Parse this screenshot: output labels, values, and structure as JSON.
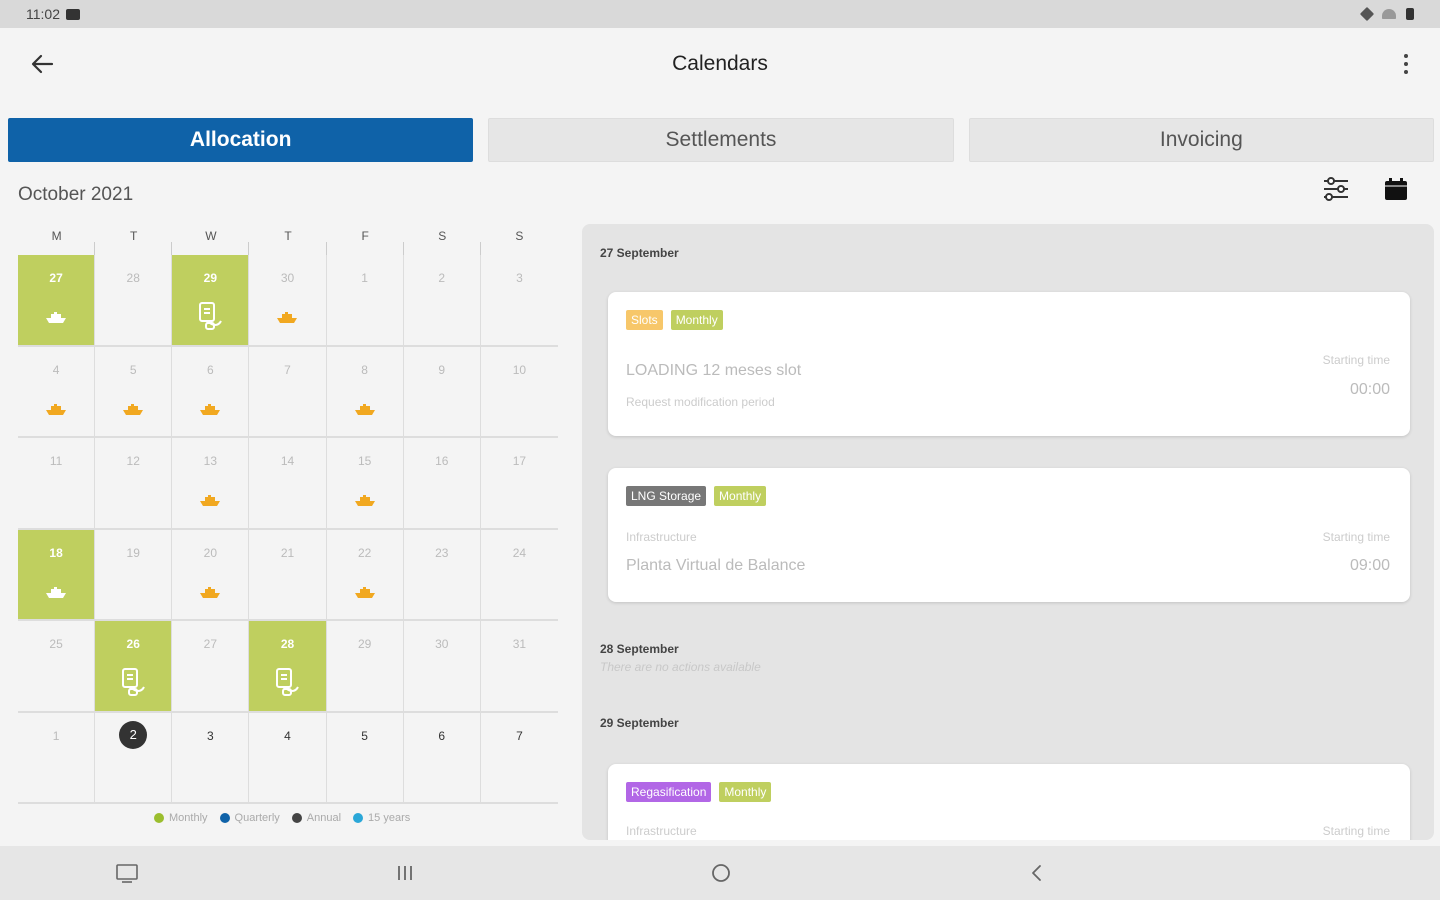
{
  "status_bar": {
    "time": "11:02"
  },
  "app_bar": {
    "title": "Calendars"
  },
  "tabs": [
    {
      "label": "Allocation",
      "active": true
    },
    {
      "label": "Settlements",
      "active": false
    },
    {
      "label": "Invoicing",
      "active": false
    }
  ],
  "month_title": "October 2021",
  "weekdays": [
    "M",
    "T",
    "W",
    "T",
    "F",
    "S",
    "S"
  ],
  "calendar_days": [
    {
      "d": "27",
      "hl": true,
      "ev": "ship"
    },
    {
      "d": "28"
    },
    {
      "d": "29",
      "hl": true,
      "ev": "doc"
    },
    {
      "d": "30",
      "ev": "ship"
    },
    {
      "d": "1"
    },
    {
      "d": "2"
    },
    {
      "d": "3"
    },
    {
      "d": "4",
      "ev": "ship"
    },
    {
      "d": "5",
      "ev": "ship"
    },
    {
      "d": "6",
      "ev": "ship"
    },
    {
      "d": "7"
    },
    {
      "d": "8",
      "ev": "ship"
    },
    {
      "d": "9"
    },
    {
      "d": "10"
    },
    {
      "d": "11"
    },
    {
      "d": "12"
    },
    {
      "d": "13",
      "ev": "ship"
    },
    {
      "d": "14"
    },
    {
      "d": "15",
      "ev": "ship"
    },
    {
      "d": "16"
    },
    {
      "d": "17"
    },
    {
      "d": "18",
      "hl": true,
      "ev": "ship"
    },
    {
      "d": "19"
    },
    {
      "d": "20",
      "ev": "ship"
    },
    {
      "d": "21"
    },
    {
      "d": "22",
      "ev": "ship"
    },
    {
      "d": "23"
    },
    {
      "d": "24"
    },
    {
      "d": "25"
    },
    {
      "d": "26",
      "hl": true,
      "ev": "doc"
    },
    {
      "d": "27"
    },
    {
      "d": "28",
      "hl": true,
      "ev": "doc"
    },
    {
      "d": "29"
    },
    {
      "d": "30"
    },
    {
      "d": "31"
    },
    {
      "d": "1"
    },
    {
      "d": "2",
      "today": true
    },
    {
      "d": "3",
      "current": true
    },
    {
      "d": "4",
      "current": true
    },
    {
      "d": "5",
      "current": true
    },
    {
      "d": "6",
      "current": true
    },
    {
      "d": "7",
      "current": true
    }
  ],
  "legend": [
    {
      "label": "Monthly",
      "color": "#9bbe2e"
    },
    {
      "label": "Quarterly",
      "color": "#0f62a8"
    },
    {
      "label": "Annual",
      "color": "#444444"
    },
    {
      "label": "15 years",
      "color": "#2aa7d8"
    }
  ],
  "panel": {
    "day1": {
      "title": "27 September"
    },
    "card1": {
      "badges": [
        {
          "label": "Slots",
          "color": "#f7c76a"
        },
        {
          "label": "Monthly",
          "color": "#bfcf5f"
        }
      ],
      "name": "LOADING 12 meses slot",
      "sub": "Request modification period",
      "time_label": "Starting time",
      "time": "00:00"
    },
    "card2": {
      "badges": [
        {
          "label": "LNG Storage",
          "color": "#777777"
        },
        {
          "label": "Monthly",
          "color": "#bfcf5f"
        }
      ],
      "label": "Infrastructure",
      "name": "Planta Virtual de Balance",
      "time_label": "Starting time",
      "time": "09:00"
    },
    "day2": {
      "title": "28 September",
      "empty": "There are no actions available"
    },
    "day3": {
      "title": "29 September"
    },
    "card3": {
      "badges": [
        {
          "label": "Regasification",
          "color": "#b267e6"
        },
        {
          "label": "Monthly",
          "color": "#bfcf5f"
        }
      ],
      "label": "Infrastructure",
      "time_label": "Starting time"
    }
  }
}
